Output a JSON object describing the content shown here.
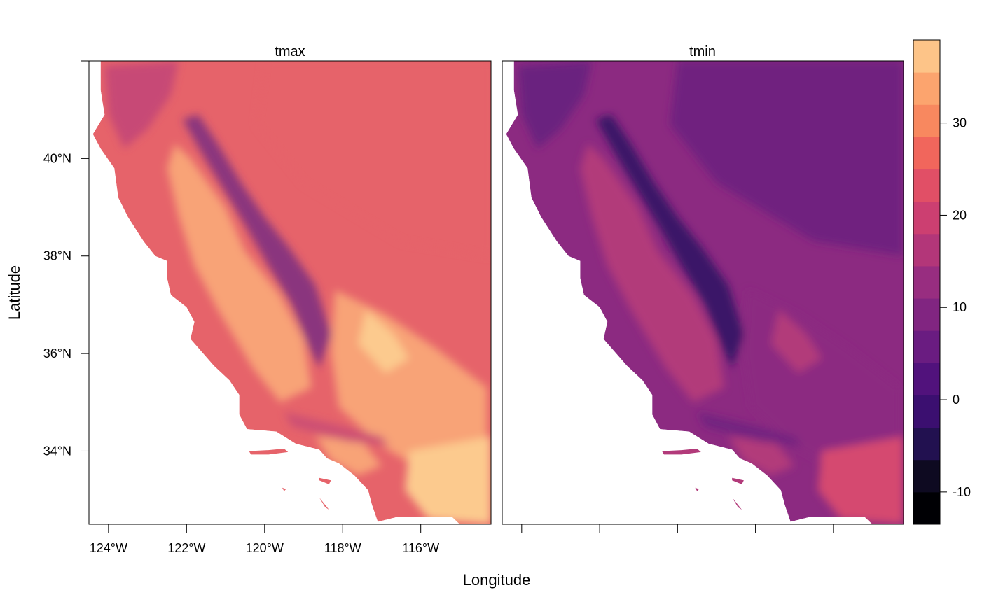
{
  "chart_data": {
    "type": "heatmap",
    "panels": [
      {
        "title": "tmax",
        "variable": "tmax"
      },
      {
        "title": "tmin",
        "variable": "tmin"
      }
    ],
    "xlabel": "Longitude",
    "ylabel": "Latitude",
    "x_ticks": [
      {
        "value": -124,
        "label": "124°W"
      },
      {
        "value": -122,
        "label": "122°W"
      },
      {
        "value": -120,
        "label": "120°W"
      },
      {
        "value": -118,
        "label": "118°W"
      },
      {
        "value": -116,
        "label": "116°W"
      }
    ],
    "y_ticks": [
      {
        "value": 34,
        "label": "34°N"
      },
      {
        "value": 36,
        "label": "36°N"
      },
      {
        "value": 38,
        "label": "38°N"
      },
      {
        "value": 40,
        "label": "40°N"
      }
    ],
    "xlim": [
      -124.5,
      -114.2
    ],
    "ylim": [
      32.5,
      42.0
    ],
    "colorbar": {
      "ticks": [
        {
          "value": -10,
          "label": "-10"
        },
        {
          "value": 0,
          "label": "0"
        },
        {
          "value": 10,
          "label": "10"
        },
        {
          "value": 20,
          "label": "20"
        },
        {
          "value": 30,
          "label": "30"
        }
      ],
      "range": [
        -13.5,
        39
      ],
      "step": 3.5,
      "colors": [
        "#000004",
        "#0e0a21",
        "#221150",
        "#3b0f70",
        "#51127c",
        "#6a1c81",
        "#812581",
        "#982d80",
        "#b33679",
        "#cc3f71",
        "#e14f66",
        "#f1665c",
        "#f8885f",
        "#fca46e",
        "#fdc488",
        "#fde3a4",
        "#fcfdbf"
      ]
    },
    "colors": {
      "tmax_base": "#e6636a",
      "tmax_warm": "#f8a377",
      "tmax_hot": "#fcca8e",
      "tmax_cool": "#c74a76",
      "tmax_cold": "#8a347e",
      "tmin_base": "#6b227f",
      "tmin_mid": "#8c2a81",
      "tmin_warm": "#b23a7a",
      "tmin_hot": "#d5486f",
      "tmin_cold": "#3b1268"
    }
  }
}
